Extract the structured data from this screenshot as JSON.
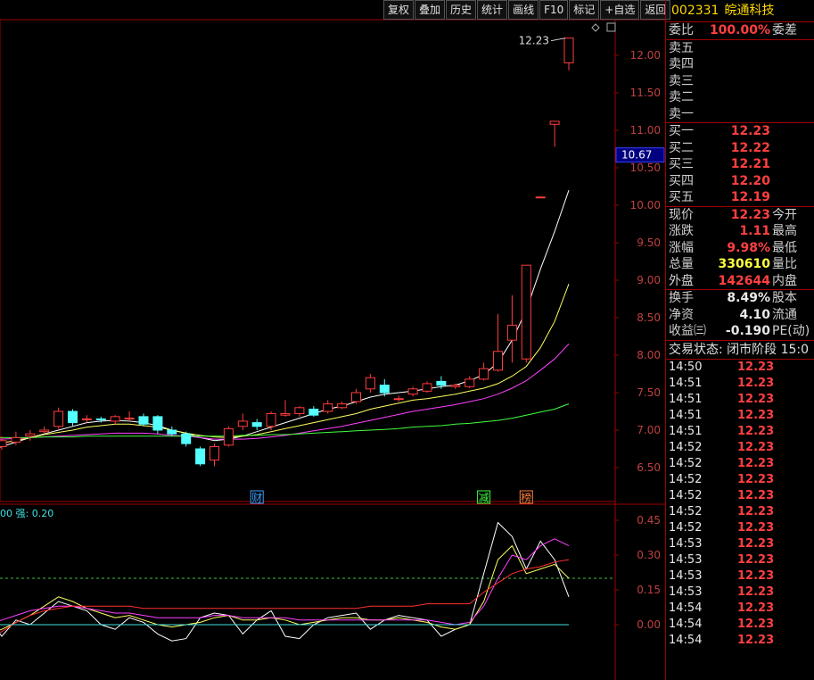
{
  "toolbar": [
    "复权",
    "叠加",
    "历史",
    "统计",
    "画线",
    "F10",
    "标记",
    "+自选",
    "返回"
  ],
  "stock": {
    "code": "002331",
    "name": "皖通科技"
  },
  "quote": {
    "weibi_label": "委比",
    "weibi_value": "100.00%",
    "weicha_label": "委差",
    "sell": [
      {
        "label": "卖五",
        "price": ""
      },
      {
        "label": "卖四",
        "price": ""
      },
      {
        "label": "卖三",
        "price": ""
      },
      {
        "label": "卖二",
        "price": ""
      },
      {
        "label": "卖一",
        "price": ""
      }
    ],
    "buy": [
      {
        "label": "买一",
        "price": "12.23"
      },
      {
        "label": "买二",
        "price": "12.22"
      },
      {
        "label": "买三",
        "price": "12.21"
      },
      {
        "label": "买四",
        "price": "12.20"
      },
      {
        "label": "买五",
        "price": "12.19"
      }
    ],
    "stats": [
      {
        "label": "现价",
        "value": "12.23",
        "color": "red",
        "label2": "今开"
      },
      {
        "label": "涨跌",
        "value": "1.11",
        "color": "red",
        "label2": "最高"
      },
      {
        "label": "涨幅",
        "value": "9.98%",
        "color": "red",
        "label2": "最低"
      },
      {
        "label": "总量",
        "value": "330610",
        "color": "yel",
        "label2": "量比"
      },
      {
        "label": "外盘",
        "value": "142644",
        "color": "red",
        "label2": "内盘"
      }
    ],
    "fin": [
      {
        "label": "换手",
        "value": "8.49%",
        "label2": "股本"
      },
      {
        "label": "净资",
        "value": "4.10",
        "label2": "流通"
      },
      {
        "label": "收益㈢",
        "value": "-0.190",
        "label2": "PE(动)"
      }
    ],
    "status": "交易状态: 闭市阶段 15:0",
    "ticks": [
      {
        "time": "14:50",
        "price": "12.23"
      },
      {
        "time": "14:51",
        "price": "12.23"
      },
      {
        "time": "14:51",
        "price": "12.23"
      },
      {
        "time": "14:51",
        "price": "12.23"
      },
      {
        "time": "14:51",
        "price": "12.23"
      },
      {
        "time": "14:52",
        "price": "12.23"
      },
      {
        "time": "14:52",
        "price": "12.23"
      },
      {
        "time": "14:52",
        "price": "12.23"
      },
      {
        "time": "14:52",
        "price": "12.23"
      },
      {
        "time": "14:52",
        "price": "12.23"
      },
      {
        "time": "14:52",
        "price": "12.23"
      },
      {
        "time": "14:53",
        "price": "12.23"
      },
      {
        "time": "14:53",
        "price": "12.23"
      },
      {
        "time": "14:53",
        "price": "12.23"
      },
      {
        "time": "14:53",
        "price": "12.23"
      },
      {
        "time": "14:54",
        "price": "12.23"
      },
      {
        "time": "14:54",
        "price": "12.23"
      },
      {
        "time": "14:54",
        "price": "12.23"
      }
    ]
  },
  "chart_data": {
    "type": "candlestick",
    "price_axis": {
      "ticks": [
        "12.00",
        "11.50",
        "11.00",
        "10.50",
        "10.00",
        "9.50",
        "9.00",
        "8.50",
        "8.00",
        "7.50",
        "7.00",
        "6.50"
      ],
      "range": [
        6.2,
        12.5
      ],
      "current_label": "10.67",
      "high_label": "12.23"
    },
    "candles": [
      {
        "o": 6.82,
        "h": 6.9,
        "l": 6.72,
        "c": 6.74
      },
      {
        "o": 6.78,
        "h": 6.92,
        "l": 6.74,
        "c": 6.86
      },
      {
        "o": 6.84,
        "h": 6.98,
        "l": 6.8,
        "c": 6.9
      },
      {
        "o": 6.92,
        "h": 7.0,
        "l": 6.86,
        "c": 6.95
      },
      {
        "o": 6.98,
        "h": 7.05,
        "l": 6.95,
        "c": 7.0
      },
      {
        "o": 7.05,
        "h": 7.3,
        "l": 7.02,
        "c": 7.25
      },
      {
        "o": 7.25,
        "h": 7.28,
        "l": 7.05,
        "c": 7.1
      },
      {
        "o": 7.15,
        "h": 7.2,
        "l": 7.1,
        "c": 7.15
      },
      {
        "o": 7.15,
        "h": 7.18,
        "l": 7.1,
        "c": 7.14
      },
      {
        "o": 7.12,
        "h": 7.2,
        "l": 7.08,
        "c": 7.18
      },
      {
        "o": 7.15,
        "h": 7.25,
        "l": 7.12,
        "c": 7.16
      },
      {
        "o": 7.18,
        "h": 7.22,
        "l": 7.05,
        "c": 7.08
      },
      {
        "o": 7.18,
        "h": 7.2,
        "l": 6.95,
        "c": 7.0
      },
      {
        "o": 7.0,
        "h": 7.05,
        "l": 6.92,
        "c": 6.95
      },
      {
        "o": 6.95,
        "h": 6.98,
        "l": 6.78,
        "c": 6.82
      },
      {
        "o": 6.75,
        "h": 6.78,
        "l": 6.52,
        "c": 6.55
      },
      {
        "o": 6.6,
        "h": 6.82,
        "l": 6.52,
        "c": 6.78
      },
      {
        "o": 6.8,
        "h": 7.05,
        "l": 6.78,
        "c": 7.02
      },
      {
        "o": 7.05,
        "h": 7.22,
        "l": 7.0,
        "c": 7.12
      },
      {
        "o": 7.1,
        "h": 7.15,
        "l": 7.0,
        "c": 7.05
      },
      {
        "o": 7.05,
        "h": 7.25,
        "l": 7.0,
        "c": 7.22
      },
      {
        "o": 7.2,
        "h": 7.4,
        "l": 7.18,
        "c": 7.22
      },
      {
        "o": 7.22,
        "h": 7.32,
        "l": 7.18,
        "c": 7.3
      },
      {
        "o": 7.28,
        "h": 7.32,
        "l": 7.18,
        "c": 7.2
      },
      {
        "o": 7.25,
        "h": 7.4,
        "l": 7.22,
        "c": 7.35
      },
      {
        "o": 7.3,
        "h": 7.38,
        "l": 7.28,
        "c": 7.35
      },
      {
        "o": 7.38,
        "h": 7.55,
        "l": 7.35,
        "c": 7.5
      },
      {
        "o": 7.55,
        "h": 7.75,
        "l": 7.5,
        "c": 7.7
      },
      {
        "o": 7.6,
        "h": 7.68,
        "l": 7.45,
        "c": 7.5
      },
      {
        "o": 7.42,
        "h": 7.46,
        "l": 7.38,
        "c": 7.42
      },
      {
        "o": 7.48,
        "h": 7.58,
        "l": 7.45,
        "c": 7.55
      },
      {
        "o": 7.52,
        "h": 7.65,
        "l": 7.5,
        "c": 7.62
      },
      {
        "o": 7.65,
        "h": 7.72,
        "l": 7.55,
        "c": 7.6
      },
      {
        "o": 7.58,
        "h": 7.62,
        "l": 7.55,
        "c": 7.6
      },
      {
        "o": 7.58,
        "h": 7.72,
        "l": 7.56,
        "c": 7.68
      },
      {
        "o": 7.68,
        "h": 7.9,
        "l": 7.66,
        "c": 7.82
      },
      {
        "o": 7.8,
        "h": 8.55,
        "l": 7.78,
        "c": 8.05
      },
      {
        "o": 8.2,
        "h": 8.8,
        "l": 7.9,
        "c": 8.4
      },
      {
        "o": 7.95,
        "h": 9.2,
        "l": 7.9,
        "c": 9.2
      },
      {
        "o": 10.1,
        "h": 10.12,
        "l": 10.1,
        "c": 10.11
      },
      {
        "o": 11.08,
        "h": 11.12,
        "l": 10.78,
        "c": 11.12
      },
      {
        "o": 11.9,
        "h": 12.23,
        "l": 11.8,
        "c": 12.23
      }
    ],
    "ma_series": [
      {
        "color": "#ffffff",
        "values": [
          6.72,
          6.78,
          6.84,
          6.9,
          6.95,
          7.0,
          7.05,
          7.1,
          7.12,
          7.13,
          7.12,
          7.1,
          7.06,
          7.0,
          6.96,
          6.9,
          6.86,
          6.88,
          6.92,
          6.98,
          7.04,
          7.1,
          7.16,
          7.22,
          7.28,
          7.32,
          7.38,
          7.44,
          7.48,
          7.5,
          7.52,
          7.55,
          7.58,
          7.6,
          7.66,
          7.74,
          7.9,
          8.2,
          8.6,
          9.15,
          9.65,
          10.2
        ]
      },
      {
        "color": "#ffff60",
        "values": [
          6.8,
          6.83,
          6.86,
          6.9,
          6.94,
          6.97,
          7.0,
          7.04,
          7.06,
          7.08,
          7.08,
          7.06,
          7.04,
          7.0,
          6.96,
          6.93,
          6.91,
          6.9,
          6.92,
          6.94,
          6.98,
          7.02,
          7.06,
          7.1,
          7.14,
          7.18,
          7.22,
          7.28,
          7.32,
          7.36,
          7.4,
          7.42,
          7.45,
          7.48,
          7.52,
          7.56,
          7.62,
          7.72,
          7.85,
          8.1,
          8.45,
          8.95
        ]
      },
      {
        "color": "#ff40ff",
        "values": [
          6.88,
          6.88,
          6.89,
          6.9,
          6.91,
          6.92,
          6.93,
          6.94,
          6.95,
          6.96,
          6.96,
          6.96,
          6.95,
          6.93,
          6.92,
          6.9,
          6.88,
          6.88,
          6.88,
          6.89,
          6.91,
          6.93,
          6.96,
          6.99,
          7.02,
          7.05,
          7.09,
          7.13,
          7.17,
          7.21,
          7.25,
          7.28,
          7.31,
          7.34,
          7.38,
          7.42,
          7.48,
          7.56,
          7.66,
          7.8,
          7.95,
          8.15
        ]
      },
      {
        "color": "#40ff40",
        "values": [
          6.9,
          6.9,
          6.9,
          6.9,
          6.91,
          6.91,
          6.91,
          6.92,
          6.92,
          6.92,
          6.92,
          6.92,
          6.92,
          6.92,
          6.92,
          6.92,
          6.92,
          6.92,
          6.93,
          6.93,
          6.94,
          6.94,
          6.95,
          6.96,
          6.97,
          6.98,
          6.99,
          7.0,
          7.01,
          7.02,
          7.04,
          7.05,
          7.06,
          7.08,
          7.09,
          7.11,
          7.13,
          7.16,
          7.2,
          7.24,
          7.28,
          7.35
        ]
      }
    ],
    "event_markers": [
      {
        "index": 19,
        "text": "财"
      },
      {
        "index": 35,
        "text": "减"
      },
      {
        "index": 38,
        "text": "榜"
      }
    ],
    "oscillator": {
      "label": "00 强: 0.20",
      "axis_ticks": [
        "0.45",
        "0.30",
        "0.15",
        "0.00"
      ],
      "range": [
        -0.14,
        0.5
      ],
      "threshold": 0.2,
      "series": [
        {
          "color": "#ffffff",
          "values": [
            0.03,
            -0.05,
            0.02,
            0.0,
            0.05,
            0.1,
            0.08,
            0.06,
            0.0,
            -0.02,
            0.03,
            0.01,
            -0.04,
            -0.07,
            -0.06,
            0.03,
            0.05,
            0.04,
            -0.04,
            0.02,
            0.06,
            -0.05,
            -0.06,
            0.0,
            0.03,
            0.04,
            0.05,
            -0.02,
            0.02,
            0.04,
            0.03,
            0.02,
            -0.05,
            -0.02,
            0.0,
            0.22,
            0.44,
            0.38,
            0.24,
            0.36,
            0.28,
            0.12
          ]
        },
        {
          "color": "#ffff60",
          "values": [
            -0.04,
            -0.02,
            0.01,
            0.04,
            0.08,
            0.12,
            0.1,
            0.07,
            0.05,
            0.03,
            0.04,
            0.02,
            0.0,
            -0.01,
            0.0,
            0.01,
            0.03,
            0.04,
            0.02,
            0.02,
            0.03,
            0.02,
            0.0,
            0.01,
            0.02,
            0.03,
            0.03,
            0.02,
            0.02,
            0.03,
            0.02,
            0.01,
            -0.01,
            -0.02,
            0.0,
            0.1,
            0.28,
            0.34,
            0.22,
            0.24,
            0.26,
            0.2
          ]
        },
        {
          "color": "#ff40ff",
          "values": [
            0.0,
            0.02,
            0.04,
            0.06,
            0.07,
            0.08,
            0.08,
            0.07,
            0.06,
            0.05,
            0.05,
            0.04,
            0.03,
            0.03,
            0.03,
            0.03,
            0.04,
            0.04,
            0.03,
            0.03,
            0.03,
            0.03,
            0.02,
            0.02,
            0.02,
            0.02,
            0.02,
            0.02,
            0.02,
            0.02,
            0.02,
            0.02,
            0.01,
            0.0,
            0.01,
            0.08,
            0.2,
            0.3,
            0.28,
            0.34,
            0.37,
            0.34
          ]
        },
        {
          "color": "#ff3030",
          "values": [
            -0.06,
            -0.03,
            0.01,
            0.04,
            0.06,
            0.07,
            0.08,
            0.08,
            0.08,
            0.08,
            0.08,
            0.07,
            0.07,
            0.07,
            0.07,
            0.07,
            0.07,
            0.07,
            0.07,
            0.07,
            0.07,
            0.07,
            0.07,
            0.07,
            0.07,
            0.07,
            0.07,
            0.08,
            0.08,
            0.08,
            0.08,
            0.09,
            0.09,
            0.09,
            0.09,
            0.14,
            0.18,
            0.22,
            0.24,
            0.25,
            0.27,
            0.28
          ]
        },
        {
          "color": "#40e0e0",
          "values": [
            0.0,
            0.0,
            0.0,
            0.0,
            0.0,
            0.0,
            0.0,
            0.0,
            0.0,
            0.0,
            0.0,
            0.0,
            0.0,
            0.0,
            0.0,
            0.0,
            0.0,
            0.0,
            0.0,
            0.0,
            0.0,
            0.0,
            0.0,
            0.0,
            0.0,
            0.0,
            0.0,
            0.0,
            0.0,
            0.0,
            0.0,
            0.0,
            0.0,
            0.0,
            0.0,
            0.0,
            0.0,
            0.0,
            0.0,
            0.0,
            0.0,
            0.0
          ]
        }
      ]
    }
  }
}
